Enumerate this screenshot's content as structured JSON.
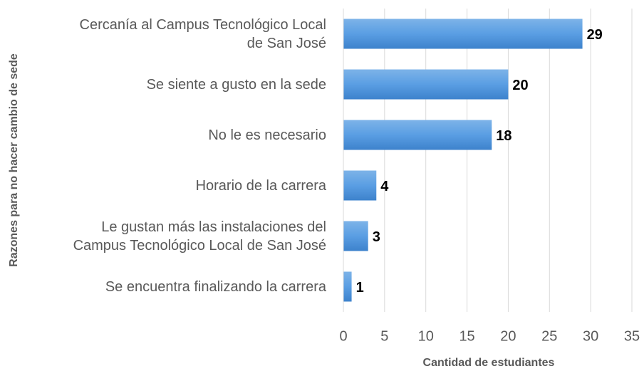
{
  "chart_data": {
    "type": "barh",
    "xlabel": "Cantidad de estudiantes",
    "ylabel": "Razones para no hacer cambio de sede",
    "categories": [
      "Cercanía al Campus Tecnológico Local\nde San José",
      "Se siente a gusto en la sede",
      "No le es necesario",
      "Horario de la carrera",
      "Le gustan más las instalaciones del\nCampus Tecnológico Local de San José",
      "Se encuentra finalizando la carrera"
    ],
    "values": [
      29,
      20,
      18,
      4,
      3,
      1
    ],
    "color": "#4a8fd6",
    "xlim": [
      0,
      35
    ],
    "xticks": [
      0,
      5,
      10,
      15,
      20,
      25,
      30,
      35
    ],
    "grid": true
  }
}
